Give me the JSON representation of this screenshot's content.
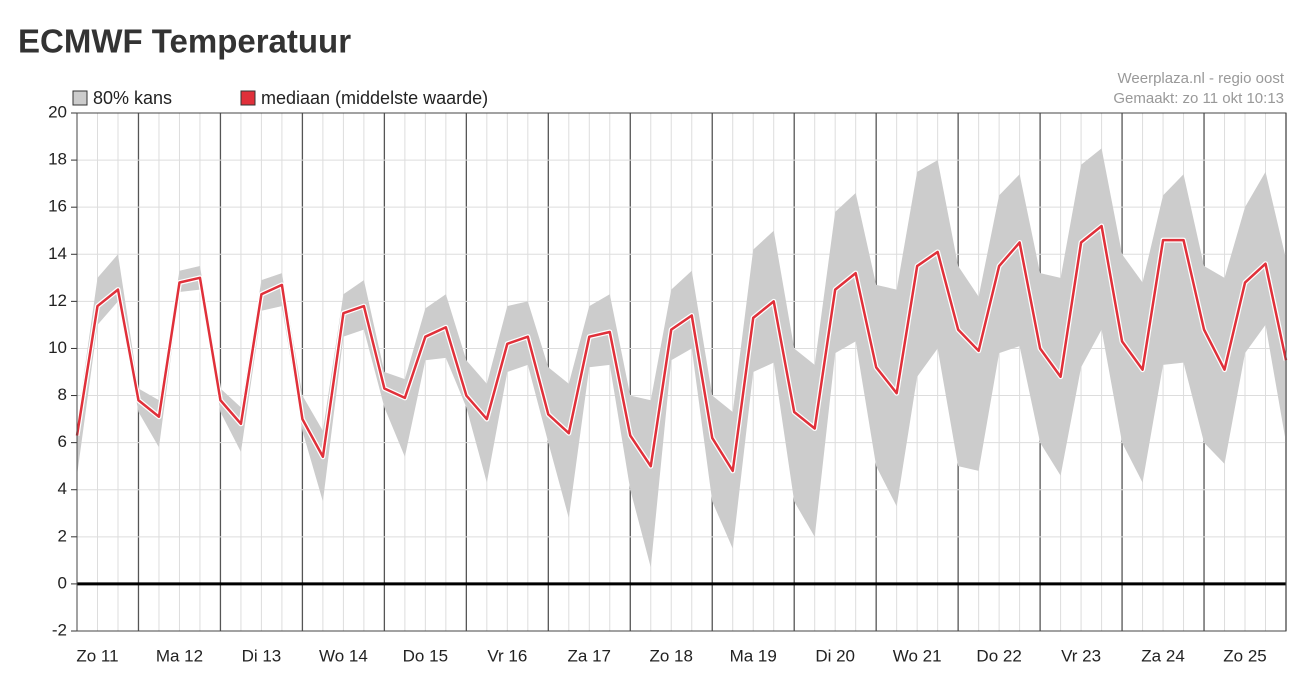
{
  "chart_data": {
    "type": "band-line",
    "title": "ECMWF Temperatuur",
    "source": "Weerplaza.nl - regio oost",
    "created": "Gemaakt: zo 11 okt 10:13",
    "x": [
      0.25,
      0.5,
      0.75,
      1,
      1.25,
      1.5,
      1.75,
      2,
      2.25,
      2.5,
      2.75,
      3,
      3.25,
      3.5,
      3.75,
      4,
      4.25,
      4.5,
      4.75,
      5,
      5.25,
      5.5,
      5.75,
      6,
      6.25,
      6.5,
      6.75,
      7,
      7.25,
      7.5,
      7.75,
      8,
      8.25,
      8.5,
      8.75,
      9,
      9.25,
      9.5,
      9.75,
      10,
      10.25,
      10.5,
      10.75,
      11,
      11.25,
      11.5,
      11.75,
      12,
      12.25,
      12.5,
      12.75,
      13,
      13.25,
      13.5,
      13.75,
      14,
      14.25,
      14.5,
      14.75,
      15
    ],
    "series": [
      {
        "name": "80% kans",
        "color": "#cccccc",
        "low": [
          4.6,
          11,
          12,
          7.3,
          5.8,
          12.4,
          12.5,
          7.3,
          5.6,
          11.6,
          11.8,
          6.5,
          3.5,
          10.5,
          10.8,
          7.5,
          5.4,
          9.5,
          9.6,
          7.5,
          4.3,
          9,
          9.3,
          6,
          2.8,
          9.2,
          9.3,
          4,
          0.7,
          9.5,
          10,
          3.5,
          1.5,
          9,
          9.4,
          3.5,
          2,
          9.8,
          10.3,
          5,
          3.3,
          8.8,
          10,
          5,
          4.8,
          9.8,
          10.1,
          6,
          4.6,
          9.2,
          10.8,
          6,
          4.3,
          9.3,
          9.4,
          6,
          5.1,
          9.8,
          11,
          6
        ],
        "high": [
          6.8,
          13,
          14,
          8.3,
          7.8,
          13.3,
          13.5,
          8.3,
          7.5,
          12.9,
          13.2,
          8,
          6.5,
          12.3,
          12.9,
          9,
          8.7,
          11.7,
          12.3,
          9.5,
          8.5,
          11.8,
          12,
          9.2,
          8.5,
          11.8,
          12.3,
          8,
          7.8,
          12.5,
          13.3,
          8,
          7.3,
          14.2,
          15,
          10,
          9.3,
          15.8,
          16.6,
          12.7,
          12.5,
          17.5,
          18,
          13.5,
          12.2,
          16.5,
          17.4,
          13.2,
          13,
          17.8,
          18.5,
          14,
          12.8,
          16.5,
          17.4,
          13.5,
          13,
          16,
          17.5,
          13.8
        ]
      },
      {
        "name": "mediaan (middelste waarde)",
        "color": "#e0303a",
        "values": [
          6.3,
          11.8,
          12.5,
          7.8,
          7.1,
          12.8,
          13,
          7.8,
          6.8,
          12.3,
          12.7,
          7,
          5.4,
          11.5,
          11.8,
          8.3,
          7.9,
          10.5,
          10.9,
          8,
          7,
          10.2,
          10.5,
          7.2,
          6.4,
          10.5,
          10.7,
          6.3,
          5,
          10.8,
          11.4,
          6.2,
          4.8,
          11.3,
          12,
          7.3,
          6.6,
          12.5,
          13.2,
          9.2,
          8.1,
          13.5,
          14.1,
          10.8,
          9.9,
          13.5,
          14.5,
          10,
          8.8,
          14.5,
          15.2,
          10.3,
          9.1,
          14.6,
          14.6,
          10.8,
          9.1,
          12.8,
          13.6,
          9.5
        ]
      }
    ],
    "xlim": [
      0.25,
      15
    ],
    "xticks": [
      {
        "value": 0.5,
        "label": "Zo 11"
      },
      {
        "value": 1.5,
        "label": "Ma 12"
      },
      {
        "value": 2.5,
        "label": "Di 13"
      },
      {
        "value": 3.5,
        "label": "Wo 14"
      },
      {
        "value": 4.5,
        "label": "Do 15"
      },
      {
        "value": 5.5,
        "label": "Vr 16"
      },
      {
        "value": 6.5,
        "label": "Za 17"
      },
      {
        "value": 7.5,
        "label": "Zo 18"
      },
      {
        "value": 8.5,
        "label": "Ma 19"
      },
      {
        "value": 9.5,
        "label": "Di 20"
      },
      {
        "value": 10.5,
        "label": "Wo 21"
      },
      {
        "value": 11.5,
        "label": "Do 22"
      },
      {
        "value": 12.5,
        "label": "Vr 23"
      },
      {
        "value": 13.5,
        "label": "Za 24"
      },
      {
        "value": 14.5,
        "label": "Zo 25"
      }
    ],
    "ylim": [
      -2,
      20
    ],
    "yticks": [
      -2,
      0,
      2,
      4,
      6,
      8,
      10,
      12,
      14,
      16,
      18,
      20
    ],
    "grid": true
  }
}
